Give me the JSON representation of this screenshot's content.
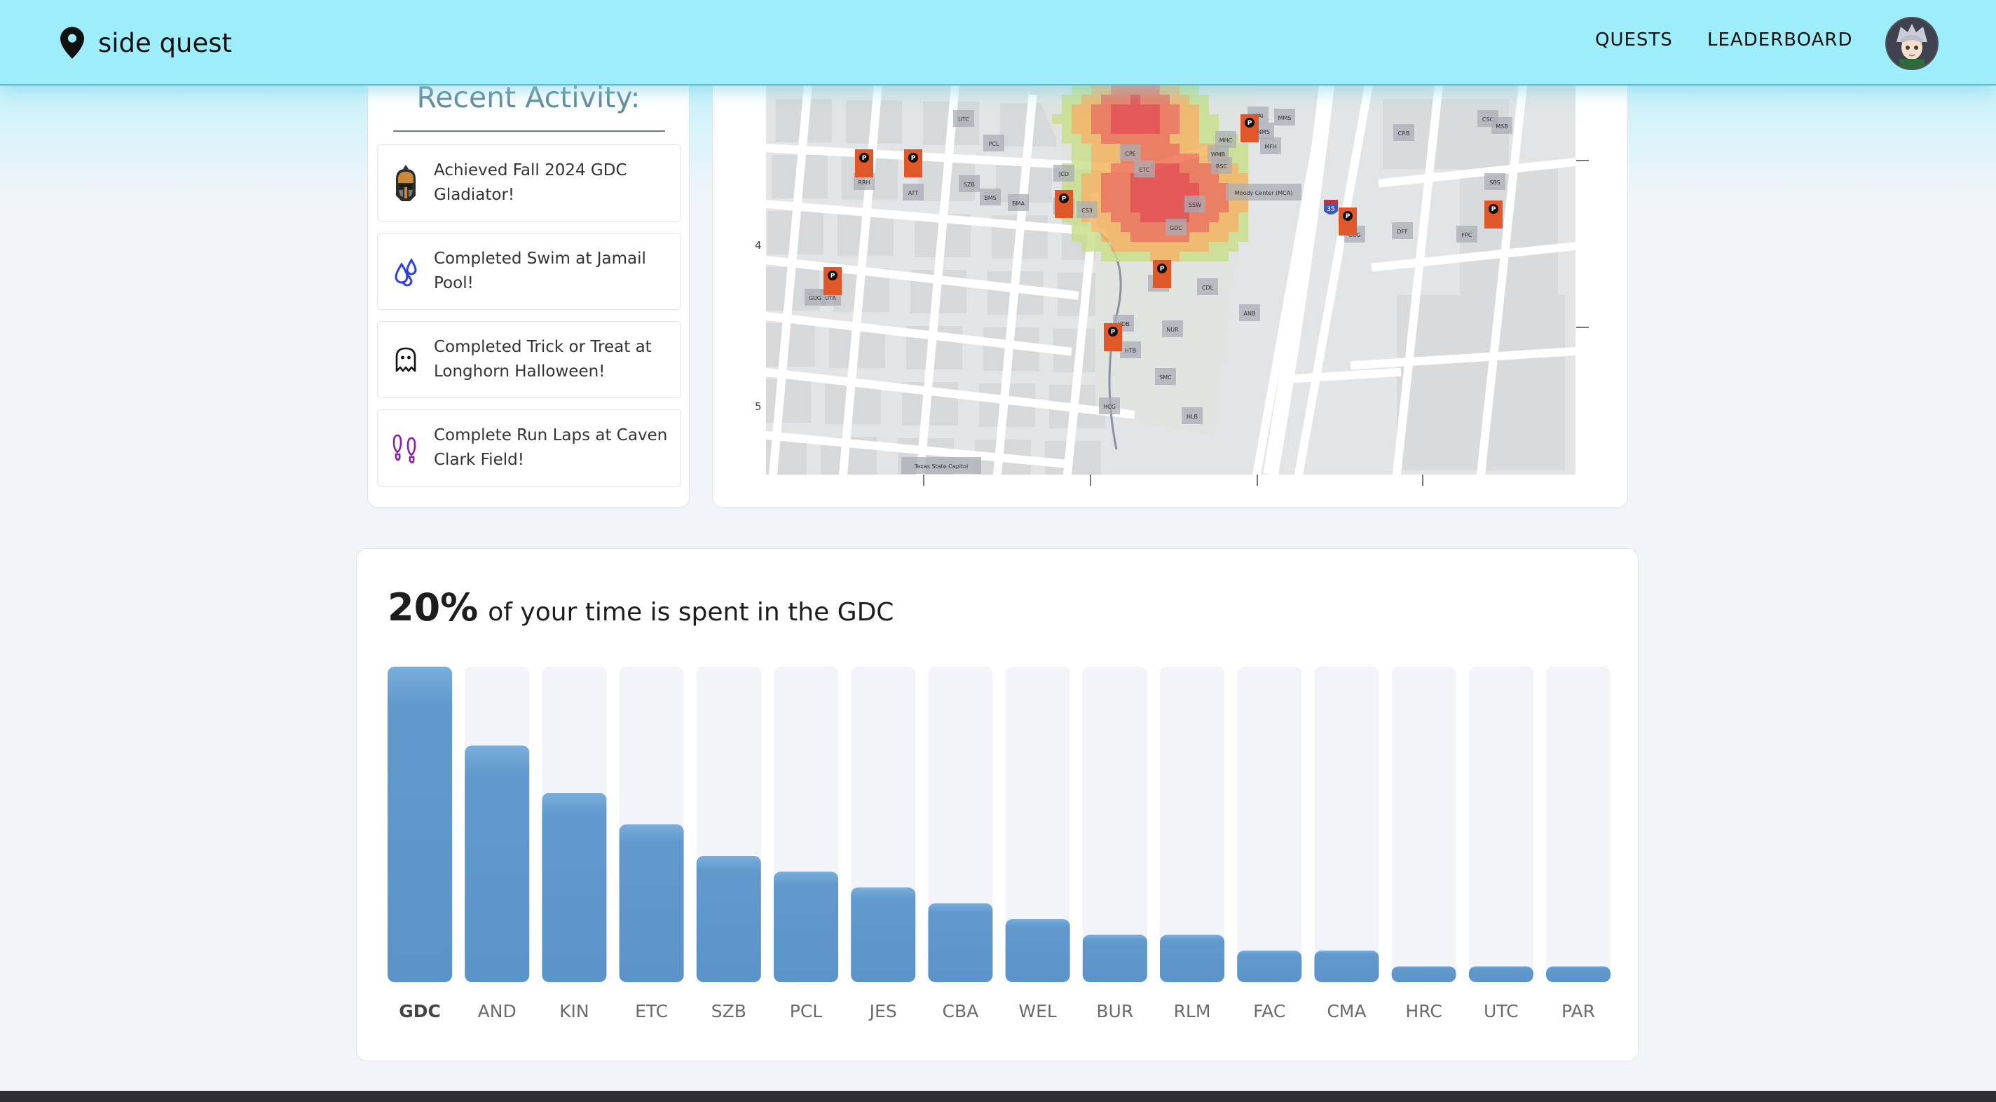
{
  "app": {
    "brand": "side quest"
  },
  "nav": {
    "quests": "QUESTS",
    "leaderboard": "LEADERBOARD"
  },
  "activity": {
    "title": "Recent Activity:",
    "items": [
      {
        "icon": "gladiator-helmet-icon",
        "text": "Achieved Fall 2024 GDC Gladiator!"
      },
      {
        "icon": "water-drops-icon",
        "text": "Completed Swim at Jamail Pool!"
      },
      {
        "icon": "ghost-icon",
        "text": "Completed Trick or Treat at Longhorn Halloween!"
      },
      {
        "icon": "footprints-icon",
        "text": "Complete Run Laps at Caven Clark Field!"
      }
    ]
  },
  "map": {
    "y_tick_labels": [
      "4",
      "5"
    ],
    "building_labels": [
      "UTC",
      "PCL",
      "JCD",
      "SZB",
      "ATT",
      "RRH",
      "BMS",
      "BMA",
      "BRG",
      "CS3",
      "SSW",
      "BSC",
      "WMB",
      "MHC",
      "MAI",
      "MMS",
      "NMS",
      "MFH",
      "CPE",
      "ETC",
      "GDC",
      "ENS",
      "CDL",
      "NUR",
      "HDB",
      "HTB",
      "SMC",
      "HLB",
      "HCG",
      "UTA",
      "GUG",
      "ANB",
      "ECG",
      "DFF",
      "FPC",
      "SBS",
      "CRB",
      "CSC",
      "MSB",
      "Moody Center (MCA)",
      "Texas State Capitol"
    ],
    "highway_label": "35"
  },
  "stat": {
    "percent": "20%",
    "text": "of your time is spent in the GDC"
  },
  "colors": {
    "bar": "#6199cd",
    "bar_track": "#f2f4f9",
    "header": "#9eedfb",
    "title_teal": "#66899a",
    "heat_red": "#e84343"
  },
  "chart_data": {
    "type": "bar",
    "categories": [
      "GDC",
      "AND",
      "KIN",
      "ETC",
      "SZB",
      "PCL",
      "JES",
      "CBA",
      "WEL",
      "BUR",
      "RLM",
      "FAC",
      "CMA",
      "HRC",
      "UTC",
      "PAR"
    ],
    "values": [
      100,
      75,
      60,
      50,
      40,
      35,
      30,
      25,
      20,
      15,
      15,
      10,
      10,
      5,
      5,
      5
    ],
    "ylim": [
      0,
      100
    ],
    "highlight": "GDC"
  }
}
